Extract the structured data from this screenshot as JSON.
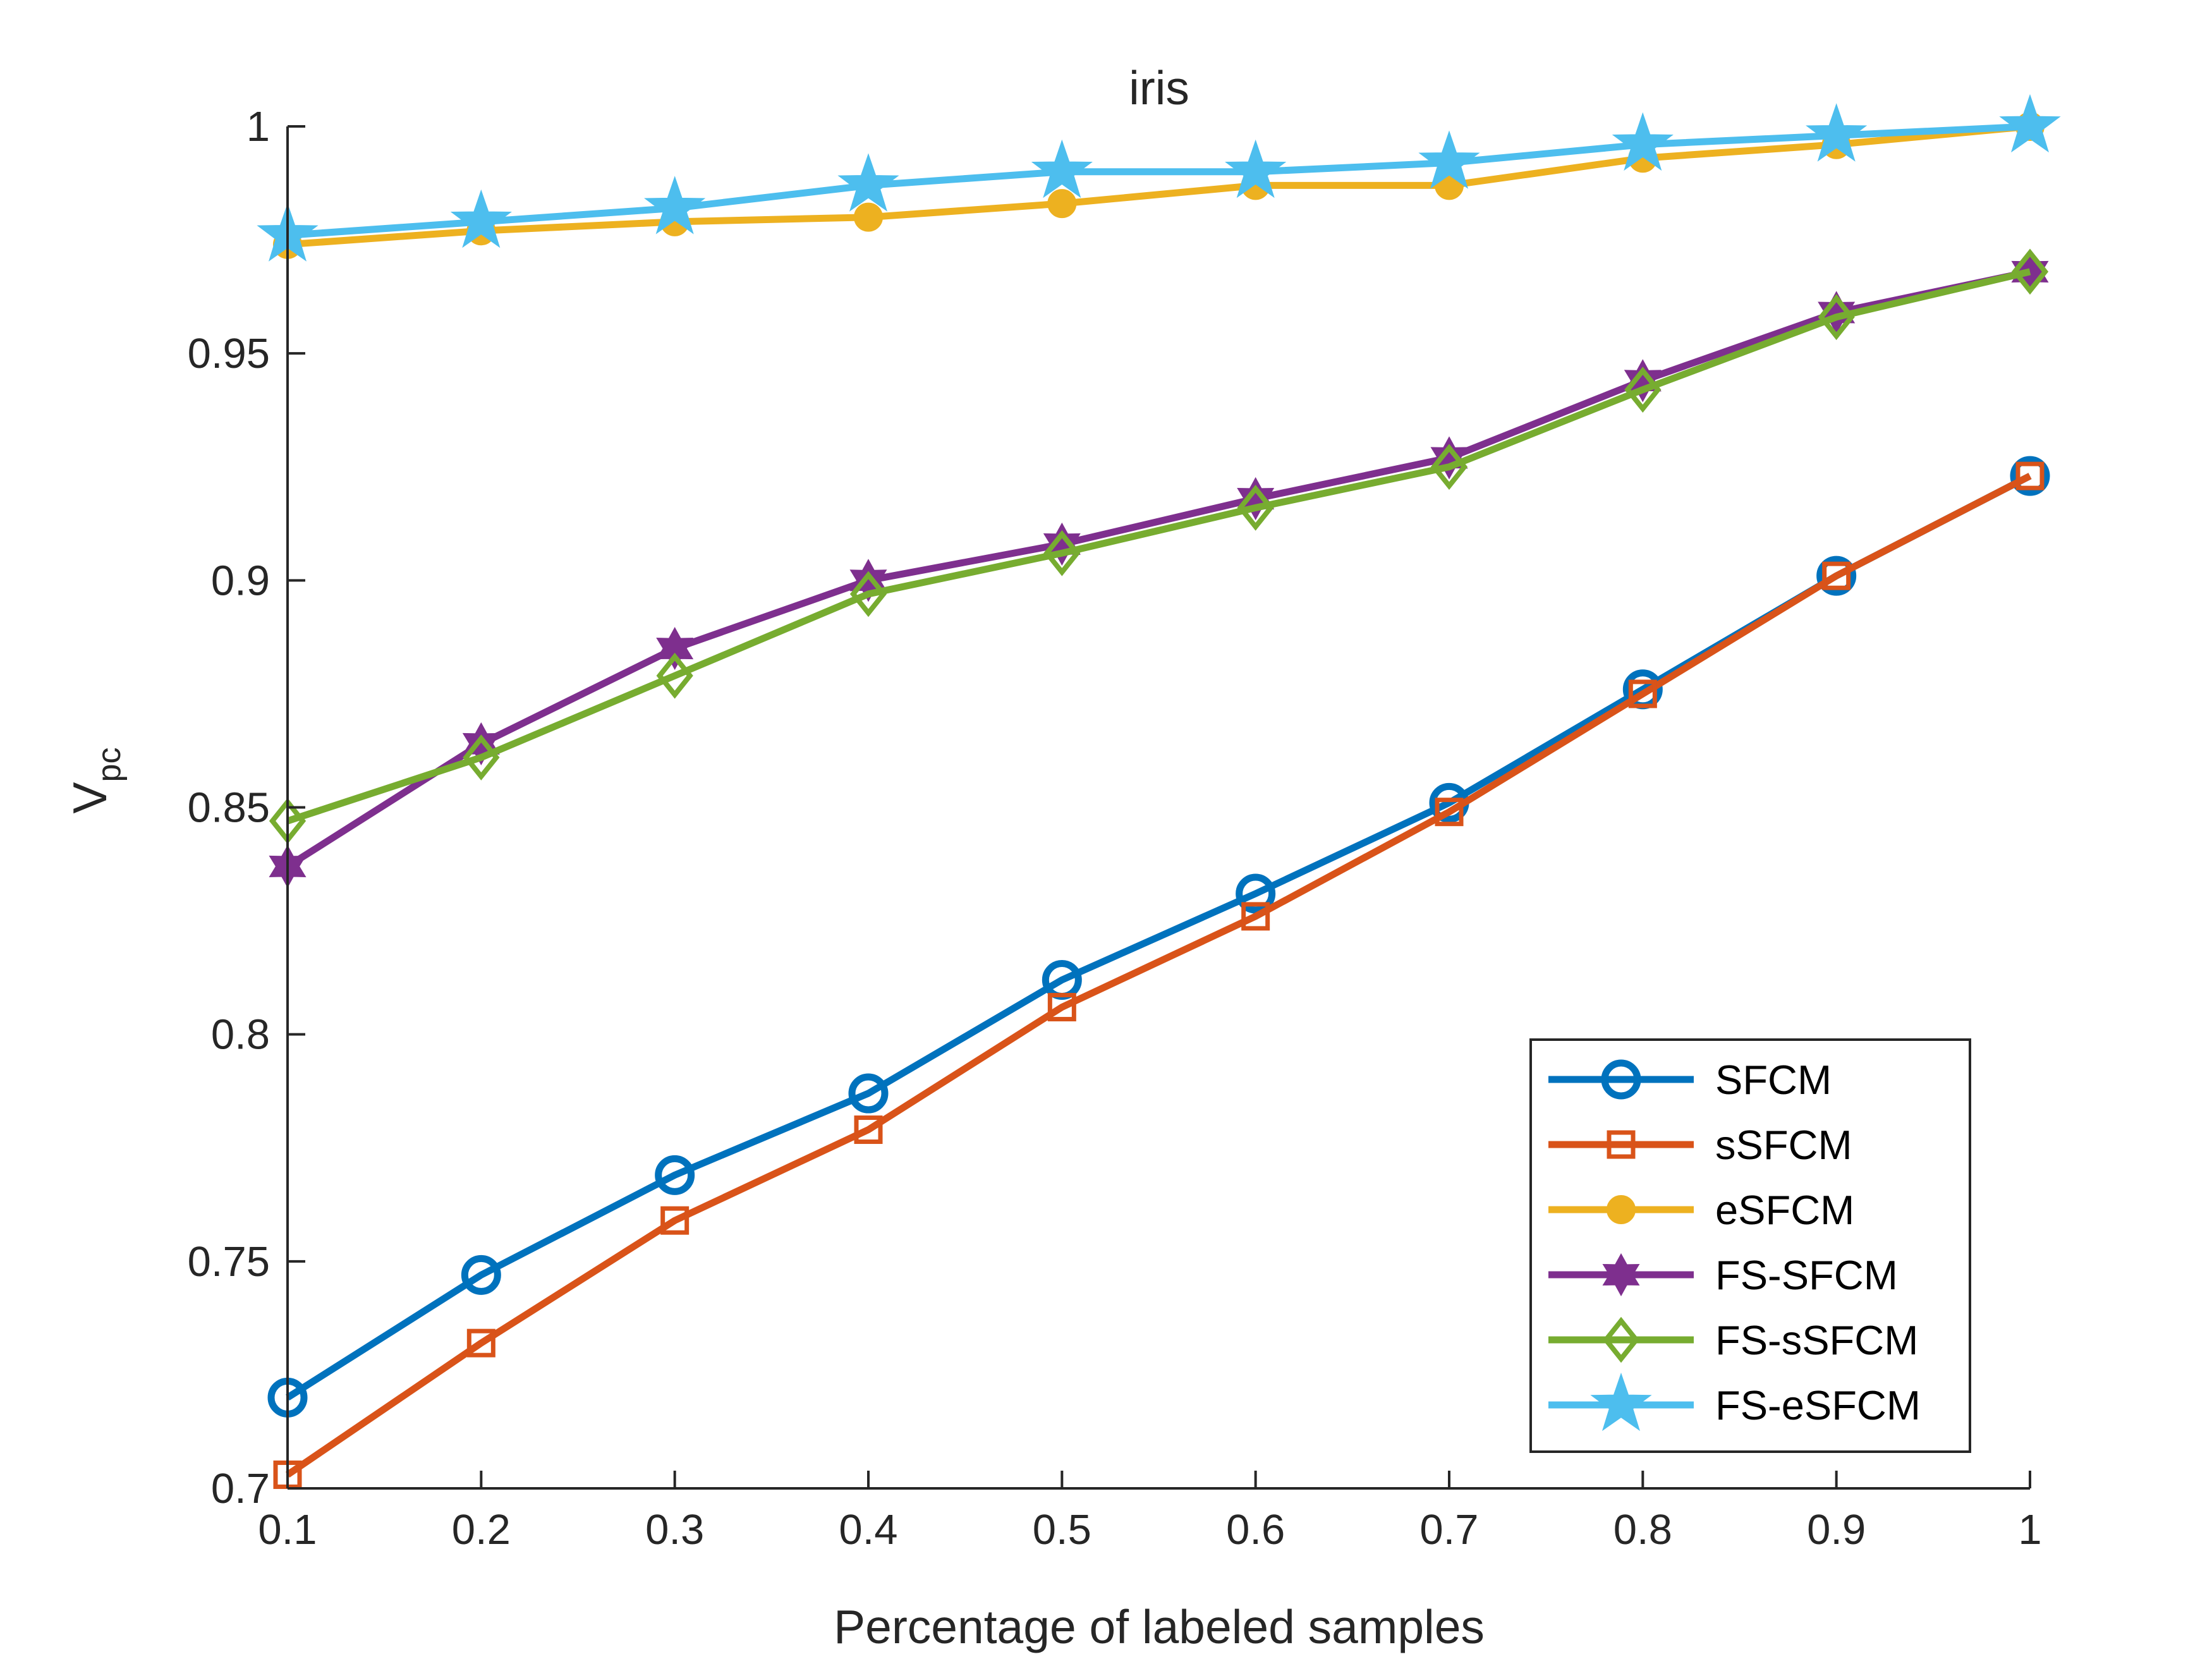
{
  "chart_data": {
    "type": "line",
    "title": "iris",
    "xlabel": "Percentage of labeled samples",
    "ylabel_main": "V",
    "ylabel_sub": "pc",
    "xlim": [
      0.1,
      1
    ],
    "ylim": [
      0.7,
      1
    ],
    "grid": false,
    "legend_position": "bottom-right",
    "x": [
      0.1,
      0.2,
      0.3,
      0.4,
      0.5,
      0.6,
      0.7,
      0.8,
      0.9,
      1.0
    ],
    "x_ticks": [
      "0.1",
      "0.2",
      "0.3",
      "0.4",
      "0.5",
      "0.6",
      "0.7",
      "0.8",
      "0.9",
      "1"
    ],
    "y_ticks": [
      {
        "value": 0.7,
        "label": "0.7"
      },
      {
        "value": 0.75,
        "label": "0.75"
      },
      {
        "value": 0.8,
        "label": "0.8"
      },
      {
        "value": 0.85,
        "label": "0.85"
      },
      {
        "value": 0.9,
        "label": "0.9"
      },
      {
        "value": 0.95,
        "label": "0.95"
      },
      {
        "value": 1.0,
        "label": "1"
      }
    ],
    "series": [
      {
        "name": "SFCM",
        "color": "#0072BD",
        "marker": "circle",
        "values": [
          0.72,
          0.747,
          0.769,
          0.787,
          0.812,
          0.831,
          0.851,
          0.876,
          0.901,
          0.923
        ]
      },
      {
        "name": "sSFCM",
        "color": "#D95319",
        "marker": "square",
        "values": [
          0.703,
          0.732,
          0.759,
          0.779,
          0.806,
          0.826,
          0.849,
          0.875,
          0.901,
          0.923
        ]
      },
      {
        "name": "eSFCM",
        "color": "#EDB120",
        "marker": "dot",
        "values": [
          0.974,
          0.977,
          0.979,
          0.98,
          0.983,
          0.987,
          0.987,
          0.993,
          0.996,
          1.0
        ]
      },
      {
        "name": "FS-SFCM",
        "color": "#7E2F8E",
        "marker": "hexagram",
        "values": [
          0.837,
          0.864,
          0.885,
          0.9,
          0.908,
          0.918,
          0.927,
          0.944,
          0.959,
          0.968
        ]
      },
      {
        "name": "FS-sSFCM",
        "color": "#77AC30",
        "marker": "diamond",
        "values": [
          0.847,
          0.861,
          0.879,
          0.897,
          0.906,
          0.916,
          0.925,
          0.942,
          0.958,
          0.968
        ]
      },
      {
        "name": "FS-eSFCM",
        "color": "#4DBEEE",
        "marker": "pentagram",
        "values": [
          0.976,
          0.979,
          0.982,
          0.987,
          0.99,
          0.99,
          0.992,
          0.996,
          0.998,
          1.0
        ]
      }
    ]
  }
}
